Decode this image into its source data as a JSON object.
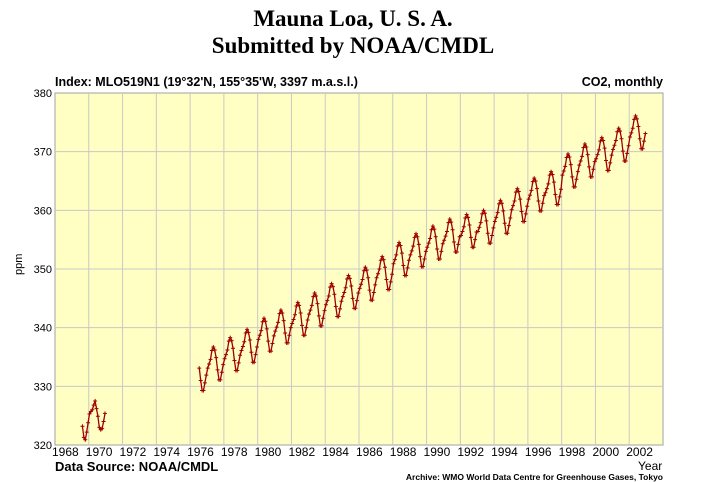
{
  "title_line1": "Mauna Loa, U. S. A.",
  "title_line2": "Submitted by NOAA/CMDL",
  "index_label": "Index: MLO519N1 (19°32'N, 155°35'W, 3397 m.a.s.l.)",
  "series_kind": "CO2, monthly",
  "data_source": "Data Source: NOAA/CMDL",
  "archive": "Archive: WMO World Data Centre for Greenhouse Gases, Tokyo",
  "colors": {
    "plot_bg": "#ffffc4",
    "grid": "#c8c8c8",
    "line": "#a00000"
  },
  "chart_data": {
    "type": "line",
    "title": "Mauna Loa, U. S. A.",
    "xlabel": "Year",
    "ylabel": "ppm",
    "xlim": [
      1968,
      2004
    ],
    "ylim": [
      320,
      380
    ],
    "xticks": [
      "1968",
      "1970",
      "1972",
      "1974",
      "1976",
      "1978",
      "1980",
      "1982",
      "1984",
      "1986",
      "1988",
      "1990",
      "1992",
      "1994",
      "1996",
      "1998",
      "2000",
      "2002"
    ],
    "yticks": [
      "320",
      "330",
      "340",
      "350",
      "360",
      "370",
      "380"
    ],
    "grid": true,
    "markers": "plus",
    "segments": [
      {
        "start_year": 1969,
        "start_month": 8,
        "values": [
          323.2,
          321.3,
          320.9,
          322.2,
          323.8,
          325.3,
          325.7,
          326.0,
          326.8,
          327.5,
          326.2,
          324.9,
          323.0,
          322.6,
          322.8,
          324.0,
          325.4
        ]
      },
      {
        "start_year": 1976,
        "start_month": 7,
        "values": [
          333.1,
          331.0,
          329.3,
          329.3,
          330.6,
          331.9,
          333.1,
          333.8,
          334.6,
          336.1,
          336.7,
          336.2,
          334.9,
          332.8,
          331.1,
          331.1,
          332.4,
          333.7,
          334.7,
          335.4,
          336.2,
          337.7,
          338.3,
          337.8,
          336.5,
          334.4,
          332.7,
          332.7,
          334.0,
          335.3,
          336.1,
          336.8,
          337.6,
          339.1,
          339.7,
          339.2,
          337.9,
          335.8,
          334.1,
          334.1,
          335.4,
          336.7,
          338.0,
          338.7,
          339.5,
          341.0,
          341.6,
          341.1,
          339.8,
          337.7,
          336.0,
          336.0,
          337.3,
          338.6,
          339.4,
          340.1,
          340.9,
          342.4,
          343.0,
          342.5,
          341.2,
          339.1,
          337.4,
          337.4,
          338.7,
          340.0,
          340.7,
          341.4,
          342.2,
          343.7,
          344.3,
          343.8,
          342.5,
          340.4,
          338.7,
          338.7,
          340.0,
          341.3,
          342.3,
          343.0,
          343.8,
          345.3,
          345.9,
          345.4,
          344.1,
          342.0,
          340.3,
          340.3,
          341.6,
          342.9,
          343.9,
          344.6,
          345.4,
          346.9,
          347.5,
          347.0,
          345.7,
          343.6,
          341.9,
          341.9,
          343.2,
          344.5,
          345.3,
          346.0,
          346.8,
          348.3,
          348.9,
          348.4,
          347.1,
          345.0,
          343.3,
          343.3,
          344.6,
          345.9,
          346.7,
          347.4,
          348.2,
          349.7,
          350.3,
          349.8,
          348.5,
          346.4,
          344.7,
          344.7,
          346.0,
          347.3,
          348.5,
          349.2,
          350.0,
          351.5,
          352.1,
          351.6,
          350.3,
          348.2,
          346.5,
          346.5,
          347.8,
          349.1,
          350.9,
          351.6,
          352.4,
          353.9,
          354.5,
          354.0,
          352.7,
          350.6,
          348.9,
          348.9,
          350.2,
          351.5,
          352.4,
          353.1,
          353.9,
          355.4,
          356.0,
          355.5,
          354.2,
          352.1,
          350.4,
          350.4,
          351.7,
          353.0,
          353.7,
          354.4,
          355.2,
          356.7,
          357.3,
          356.8,
          355.5,
          353.4,
          351.7,
          351.7,
          353.0,
          354.3,
          354.9,
          355.6,
          356.4,
          357.9,
          358.5,
          358.0,
          356.7,
          354.6,
          352.9,
          352.9,
          354.2,
          355.5,
          355.7,
          356.4,
          357.2,
          358.7,
          359.3,
          358.8,
          357.5,
          355.4,
          353.7,
          353.7,
          355.0,
          356.3,
          356.4,
          357.1,
          357.9,
          359.4,
          360.0,
          359.5,
          358.2,
          356.1,
          354.4,
          354.4,
          355.7,
          357.0,
          358.1,
          358.8,
          359.6,
          361.1,
          361.7,
          361.2,
          359.9,
          357.8,
          356.1,
          356.1,
          357.4,
          358.7,
          360.1,
          360.8,
          361.6,
          363.1,
          363.7,
          363.2,
          361.9,
          359.8,
          358.1,
          358.1,
          359.4,
          360.7,
          361.9,
          362.6,
          363.4,
          364.9,
          365.5,
          365.0,
          363.7,
          361.6,
          359.9,
          359.9,
          361.2,
          362.5,
          363.0,
          363.7,
          364.5,
          366.0,
          366.6,
          366.1,
          364.8,
          362.7,
          361.0,
          361.0,
          362.3,
          363.6,
          366.0,
          366.7,
          367.5,
          369.0,
          369.6,
          369.1,
          367.8,
          365.7,
          364.0,
          364.0,
          365.3,
          366.6,
          367.7,
          368.4,
          369.2,
          370.7,
          371.3,
          370.8,
          369.5,
          367.4,
          365.7,
          365.7,
          367.0,
          368.3,
          368.8,
          369.5,
          370.3,
          371.8,
          372.4,
          371.9,
          370.6,
          368.5,
          366.8,
          366.8,
          368.1,
          369.4,
          370.4,
          371.1,
          371.9,
          373.4,
          374.0,
          373.5,
          372.2,
          370.1,
          368.4,
          368.4,
          369.7,
          371.0,
          372.5,
          373.2,
          374.0,
          375.5,
          376.1,
          375.6,
          374.3,
          372.2,
          370.5,
          370.5,
          371.8,
          373.1
        ]
      }
    ]
  }
}
